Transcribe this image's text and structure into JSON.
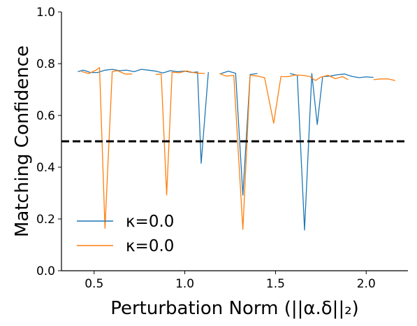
{
  "chart_data": {
    "type": "line",
    "title": "",
    "xlabel": "Perturbation Norm (||α.δ||₂)",
    "ylabel": "Matching Confidence",
    "xlim": [
      0.32,
      2.23
    ],
    "ylim": [
      0.0,
      1.0
    ],
    "x_ticks": [
      0.5,
      1.0,
      1.5,
      2.0
    ],
    "x_tick_labels": [
      "0.5",
      "1.0",
      "1.5",
      "2.0"
    ],
    "y_ticks": [
      0.0,
      0.2,
      0.4,
      0.6,
      0.8,
      1.0
    ],
    "y_tick_labels": [
      "0.0",
      "0.2",
      "0.4",
      "0.6",
      "0.8",
      "1.0"
    ],
    "grid": false,
    "legend_position": "lower-left",
    "threshold": {
      "y": 0.5,
      "color": "#000000",
      "style": "dashed"
    },
    "series": [
      {
        "name": "κ=0.0",
        "color": "#1f77b4",
        "segments": [
          [
            [
              0.41,
              0.769
            ],
            [
              0.44,
              0.775
            ],
            [
              0.48,
              0.766
            ],
            [
              0.52,
              0.766
            ],
            [
              0.56,
              0.775
            ],
            [
              0.6,
              0.778
            ],
            [
              0.64,
              0.773
            ],
            [
              0.68,
              0.775
            ],
            [
              0.72,
              0.769
            ],
            [
              0.76,
              0.778
            ],
            [
              0.8,
              0.775
            ],
            [
              0.84,
              0.771
            ],
            [
              0.88,
              0.764
            ],
            [
              0.92,
              0.773
            ],
            [
              0.96,
              0.769
            ],
            [
              1.0,
              0.771
            ],
            [
              1.04,
              0.766
            ],
            [
              1.07,
              0.768
            ],
            [
              1.09,
              0.415
            ],
            [
              1.13,
              0.767
            ]
          ],
          [
            [
              1.2,
              0.762
            ],
            [
              1.24,
              0.771
            ],
            [
              1.28,
              0.763
            ],
            [
              1.32,
              0.292
            ],
            [
              1.36,
              0.758
            ],
            [
              1.4,
              0.762
            ]
          ],
          [
            [
              1.58,
              0.762
            ],
            [
              1.62,
              0.755
            ],
            [
              1.66,
              0.157
            ],
            [
              1.7,
              0.762
            ],
            [
              1.73,
              0.565
            ],
            [
              1.76,
              0.75
            ],
            [
              1.8,
              0.752
            ],
            [
              1.84,
              0.757
            ],
            [
              1.88,
              0.76
            ],
            [
              1.92,
              0.751
            ],
            [
              1.96,
              0.746
            ],
            [
              2.0,
              0.749
            ],
            [
              2.04,
              0.747
            ]
          ]
        ]
      },
      {
        "name": "κ=0.0",
        "color": "#ff7f0e",
        "segments": [
          [
            [
              0.43,
              0.77
            ],
            [
              0.47,
              0.762
            ],
            [
              0.51,
              0.775
            ],
            [
              0.53,
              0.785
            ],
            [
              0.56,
              0.164
            ],
            [
              0.6,
              0.77
            ],
            [
              0.63,
              0.773
            ],
            [
              0.67,
              0.76
            ],
            [
              0.71,
              0.76
            ]
          ],
          [
            [
              0.84,
              0.758
            ],
            [
              0.87,
              0.76
            ],
            [
              0.9,
              0.293
            ],
            [
              0.93,
              0.767
            ],
            [
              0.97,
              0.765
            ],
            [
              1.01,
              0.772
            ],
            [
              1.05,
              0.765
            ],
            [
              1.08,
              0.763
            ],
            [
              1.11,
              0.762
            ]
          ],
          [
            [
              1.19,
              0.762
            ],
            [
              1.23,
              0.752
            ],
            [
              1.27,
              0.755
            ],
            [
              1.32,
              0.16
            ],
            [
              1.36,
              0.755
            ],
            [
              1.4,
              0.752
            ],
            [
              1.44,
              0.746
            ],
            [
              1.49,
              0.57
            ],
            [
              1.53,
              0.75
            ],
            [
              1.57,
              0.75
            ],
            [
              1.61,
              0.756
            ],
            [
              1.65,
              0.755
            ],
            [
              1.69,
              0.75
            ],
            [
              1.72,
              0.735
            ],
            [
              1.75,
              0.748
            ],
            [
              1.79,
              0.755
            ],
            [
              1.83,
              0.742
            ],
            [
              1.87,
              0.75
            ],
            [
              1.9,
              0.738
            ]
          ],
          [
            [
              2.04,
              0.738
            ],
            [
              2.08,
              0.741
            ],
            [
              2.12,
              0.741
            ],
            [
              2.16,
              0.735
            ]
          ]
        ]
      }
    ]
  }
}
